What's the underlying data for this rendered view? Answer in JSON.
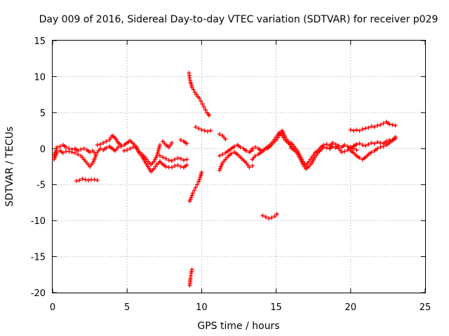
{
  "chart_data": {
    "type": "scatter",
    "title": "Day 009 of 2016, Sidereal Day-to-day VTEC variation (SDTVAR) for receiver p029",
    "xlabel": "GPS time / hours",
    "ylabel": "SDTVAR / TECUs",
    "xlim": [
      0,
      25
    ],
    "ylim": [
      -20,
      15
    ],
    "xticks": [
      "0",
      "5",
      "10",
      "15",
      "20",
      "25"
    ],
    "yticks": [
      "15",
      "10",
      "5",
      "0",
      "-5",
      "-10",
      "-15",
      "-20"
    ],
    "grid": true,
    "marker": "+",
    "color": "#ff0000",
    "series": [
      {
        "name": "SDTVAR",
        "segments": [
          {
            "x": [
              0.1,
              0.3,
              0.5,
              0.7,
              0.9,
              1.1,
              1.3,
              1.5,
              1.7,
              1.9,
              2.1,
              2.3,
              2.5,
              2.7,
              2.9
            ],
            "y": [
              -1.0,
              0.2,
              0.3,
              0.5,
              0.2,
              0.0,
              -0.1,
              0.0,
              -0.3,
              -0.1,
              0.0,
              -0.2,
              -0.5,
              -0.3,
              -0.8
            ]
          },
          {
            "x": [
              0.1,
              0.3,
              0.5,
              0.7,
              0.9,
              1.1,
              1.3,
              1.5,
              1.7,
              1.9,
              2.1,
              2.3,
              2.5,
              2.7,
              2.9
            ],
            "y": [
              -1.5,
              -0.5,
              -0.3,
              -0.6,
              -0.4,
              -0.4,
              -0.5,
              -0.6,
              -0.8,
              -1.0,
              -1.5,
              -2.0,
              -2.5,
              -2.0,
              -1.0
            ]
          },
          {
            "x": [
              1.6,
              1.8,
              2.0,
              2.2,
              2.4,
              2.6,
              2.8,
              3.0
            ],
            "y": [
              -4.5,
              -4.4,
              -4.2,
              -4.3,
              -4.4,
              -4.3,
              -4.3,
              -4.4
            ]
          },
          {
            "x": [
              3.0,
              3.2,
              3.4,
              3.6,
              3.8,
              4.0,
              4.2,
              4.4,
              4.6
            ],
            "y": [
              0.5,
              0.6,
              0.8,
              1.0,
              1.2,
              1.8,
              1.5,
              0.8,
              0.5
            ]
          },
          {
            "x": [
              3.0,
              3.2,
              3.4,
              3.6,
              3.8,
              4.0,
              4.2,
              4.4,
              4.6
            ],
            "y": [
              -0.5,
              0.0,
              -0.2,
              0.1,
              0.3,
              0.0,
              -0.3,
              0.2,
              0.3
            ]
          },
          {
            "x": [
              4.8,
              5.0,
              5.2,
              5.4,
              5.6,
              5.8,
              6.0,
              6.2,
              6.4,
              6.6,
              6.8,
              7.0,
              7.2
            ],
            "y": [
              -0.3,
              -0.2,
              0.0,
              0.2,
              0.1,
              -0.4,
              -0.8,
              -1.2,
              -1.8,
              -2.2,
              -1.8,
              -1.0,
              0.5
            ]
          },
          {
            "x": [
              4.8,
              5.0,
              5.2,
              5.4,
              5.6,
              5.8,
              6.0,
              6.2,
              6.4,
              6.6,
              6.8,
              7.0,
              7.2
            ],
            "y": [
              0.5,
              0.8,
              1.1,
              0.7,
              0.3,
              -0.6,
              -1.1,
              -1.8,
              -2.5,
              -3.2,
              -2.8,
              -2.2,
              -1.8
            ]
          },
          {
            "x": [
              7.2,
              7.4,
              7.6,
              7.8,
              8.0,
              8.2,
              8.4,
              8.6,
              8.8,
              9.0
            ],
            "y": [
              -1.8,
              -2.2,
              -2.5,
              -2.6,
              -2.6,
              -2.4,
              -2.3,
              -2.5,
              -2.6,
              -2.3
            ]
          },
          {
            "x": [
              7.2,
              7.4,
              7.6,
              7.8,
              8.0,
              8.2,
              8.4,
              8.6,
              8.8,
              9.0
            ],
            "y": [
              -1.0,
              -1.2,
              -1.4,
              -1.6,
              -1.7,
              -1.5,
              -1.3,
              -1.4,
              -1.6,
              -1.5
            ]
          },
          {
            "x": [
              7.4,
              7.6,
              7.8,
              8.0
            ],
            "y": [
              1.0,
              0.5,
              0.2,
              0.8
            ]
          },
          {
            "x": [
              8.6,
              8.8,
              9.0
            ],
            "y": [
              1.2,
              1.0,
              0.7
            ]
          },
          {
            "x": [
              9.15,
              9.2,
              9.25,
              9.3,
              9.35,
              9.45,
              9.55,
              9.65,
              9.75,
              9.85,
              9.95,
              10.05,
              10.15,
              10.25,
              10.35,
              10.45,
              10.5
            ],
            "y": [
              10.5,
              9.8,
              9.2,
              9.0,
              8.5,
              8.2,
              7.8,
              7.5,
              7.2,
              7.0,
              6.6,
              6.2,
              5.8,
              5.4,
              5.0,
              4.8,
              4.6
            ]
          },
          {
            "x": [
              9.6,
              9.8,
              10.0,
              10.2,
              10.4,
              10.6
            ],
            "y": [
              3.0,
              2.8,
              2.6,
              2.5,
              2.4,
              2.5
            ]
          },
          {
            "x": [
              9.2,
              9.3,
              9.4,
              9.5,
              9.6,
              9.7,
              9.8,
              9.9,
              10.0
            ],
            "y": [
              -7.3,
              -6.8,
              -6.2,
              -5.8,
              -5.4,
              -5.0,
              -4.6,
              -4.0,
              -3.3
            ]
          },
          {
            "x": [
              9.2,
              9.25,
              9.3,
              9.35
            ],
            "y": [
              -19.0,
              -18.0,
              -17.3,
              -16.8
            ]
          },
          {
            "x": [
              11.2,
              11.4,
              11.6,
              11.8,
              12.0,
              12.2,
              12.4,
              12.6,
              12.8,
              13.0,
              13.2,
              13.4
            ],
            "y": [
              -3.0,
              -2.0,
              -1.5,
              -1.0,
              -0.7,
              -0.5,
              -0.8,
              -1.2,
              -1.6,
              -2.0,
              -2.6,
              -2.4
            ]
          },
          {
            "x": [
              11.2,
              11.4,
              11.6,
              11.8,
              12.0,
              12.2,
              12.4,
              12.6,
              12.8,
              13.0,
              13.2,
              13.4
            ],
            "y": [
              -1.0,
              -0.8,
              -0.6,
              -0.3,
              0.0,
              0.3,
              0.5,
              0.2,
              0.0,
              -0.3,
              -0.5,
              -0.2
            ]
          },
          {
            "x": [
              11.2,
              11.4,
              11.6
            ],
            "y": [
              2.0,
              1.8,
              1.3
            ]
          },
          {
            "x": [
              13.4,
              13.6,
              13.8,
              14.0,
              14.2,
              14.4,
              14.6,
              14.8,
              15.0,
              15.2,
              15.4,
              15.6,
              15.8,
              16.0
            ],
            "y": [
              -1.5,
              -1.0,
              -0.8,
              -0.5,
              -0.2,
              0.0,
              0.3,
              0.8,
              1.2,
              1.8,
              2.5,
              1.6,
              1.0,
              0.3
            ]
          },
          {
            "x": [
              13.4,
              13.6,
              13.8,
              14.0,
              14.2,
              14.4,
              14.6,
              14.8,
              15.0,
              15.2,
              15.4,
              15.6,
              15.8,
              16.0
            ],
            "y": [
              0.0,
              0.2,
              0.0,
              -0.3,
              -0.1,
              0.2,
              0.5,
              1.0,
              1.6,
              2.2,
              1.8,
              1.2,
              0.8,
              0.6
            ]
          },
          {
            "x": [
              14.1,
              14.3,
              14.5,
              14.7,
              14.9,
              15.05
            ],
            "y": [
              -9.3,
              -9.5,
              -9.7,
              -9.6,
              -9.4,
              -9.1
            ]
          },
          {
            "x": [
              16.0,
              16.2,
              16.4,
              16.6,
              16.8,
              17.0,
              17.2,
              17.4,
              17.6,
              17.8,
              18.0,
              18.2,
              18.4,
              18.6
            ],
            "y": [
              0.8,
              0.3,
              -0.2,
              -1.0,
              -1.8,
              -2.3,
              -1.8,
              -1.2,
              -0.6,
              -0.3,
              0.2,
              0.5,
              0.6,
              0.4
            ]
          },
          {
            "x": [
              16.0,
              16.2,
              16.4,
              16.6,
              16.8,
              17.0,
              17.2,
              17.4,
              17.6,
              17.8,
              18.0,
              18.2,
              18.4,
              18.6
            ],
            "y": [
              0.1,
              -0.2,
              -0.6,
              -1.3,
              -2.2,
              -2.8,
              -2.5,
              -2.0,
              -1.2,
              -0.6,
              -0.2,
              0.2,
              0.1,
              0.0
            ]
          },
          {
            "x": [
              18.6,
              18.8,
              19.0,
              19.2,
              19.4,
              19.6,
              19.8,
              20.0,
              20.2,
              20.4
            ],
            "y": [
              0.4,
              0.8,
              0.6,
              0.0,
              -0.5,
              -0.4,
              -0.2,
              0.2,
              0.0,
              -0.2
            ]
          },
          {
            "x": [
              18.6,
              18.8,
              19.0,
              19.2,
              19.4,
              19.6,
              19.8,
              20.0,
              20.2,
              20.4
            ],
            "y": [
              0.0,
              0.3,
              0.1,
              0.4,
              0.2,
              0.5,
              0.3,
              0.0,
              0.3,
              0.6
            ]
          },
          {
            "x": [
              20.0,
              20.2,
              20.4,
              20.6,
              20.8,
              21.0,
              21.2,
              21.4,
              21.6,
              21.8,
              22.0,
              22.2,
              22.4,
              22.6,
              22.8,
              23.0
            ],
            "y": [
              -0.3,
              -0.6,
              -1.0,
              -1.3,
              -1.5,
              -1.2,
              -0.8,
              -0.5,
              -0.3,
              0.0,
              0.2,
              0.3,
              0.5,
              0.8,
              1.2,
              1.6
            ]
          },
          {
            "x": [
              20.0,
              20.2,
              20.4,
              20.6,
              20.8,
              21.0,
              21.2,
              21.4,
              21.6,
              21.8,
              22.0,
              22.2,
              22.4,
              22.6,
              22.8,
              23.0
            ],
            "y": [
              0.2,
              0.4,
              0.6,
              0.7,
              0.5,
              0.4,
              0.6,
              0.8,
              0.7,
              0.9,
              0.8,
              0.7,
              1.0,
              1.2,
              1.1,
              1.4
            ]
          },
          {
            "x": [
              20.0,
              20.2,
              20.4,
              20.6,
              20.8,
              21.0,
              21.2,
              21.4,
              21.6,
              21.8,
              22.0,
              22.2,
              22.4,
              22.6,
              22.8,
              23.0
            ],
            "y": [
              2.6,
              2.5,
              2.6,
              2.5,
              2.7,
              2.8,
              2.9,
              3.1,
              3.0,
              3.2,
              3.3,
              3.5,
              3.7,
              3.4,
              3.3,
              3.2
            ]
          }
        ]
      }
    ]
  }
}
